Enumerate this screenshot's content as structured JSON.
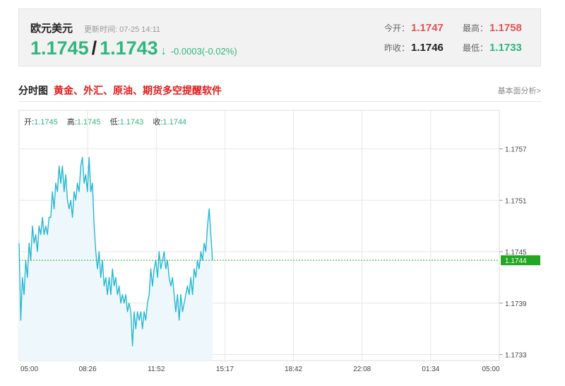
{
  "header": {
    "pair_name": "欧元美元",
    "update_time": "更新时间: 07-25 14:11",
    "price_left": "1.1745",
    "price_sep": "/",
    "price_right": "1.1743",
    "arrow": "↓",
    "change": "-0.0003(-0.02%)",
    "stats": {
      "open_label": "今开：",
      "open": "1.1747",
      "high_label": "最高：",
      "high": "1.1758",
      "prev_close_label": "昨收：",
      "prev_close": "1.1746",
      "low_label": "最低：",
      "low": "1.1733"
    }
  },
  "section": {
    "title": "分时图",
    "promo": "黄金、外汇、原油、期货多空提醒软件",
    "link": "基本面分析>"
  },
  "ohlc": {
    "open_label": "开:",
    "open": "1.1745",
    "high_label": "高:",
    "high": "1.1745",
    "low_label": "低:",
    "low": "1.1743",
    "close_label": "收:",
    "close": "1.1744"
  },
  "colors": {
    "line": "#25b6d2",
    "fill": "#eef8fc",
    "current": "#22a722",
    "grid": "#e6e6e6",
    "up": "#e45454",
    "down": "#2fb57e"
  },
  "chart_data": {
    "type": "area",
    "title": "",
    "x_ticks": [
      "05:00",
      "08:26",
      "11:52",
      "15:17",
      "18:42",
      "22:08",
      "01:34",
      "05:00"
    ],
    "y_ticks": [
      1.1757,
      1.1751,
      1.1745,
      1.1739,
      1.1733
    ],
    "ylim": [
      1.17323,
      1.17615
    ],
    "grid": true,
    "current_value": 1.1744,
    "current_label": "1.1744",
    "x_unit": "minutes from 05:00",
    "series": [
      {
        "x": [
          0,
          5,
          10,
          15,
          20,
          25,
          30,
          35,
          40,
          45,
          50,
          55,
          60,
          65,
          70,
          75,
          80,
          85,
          90,
          95,
          100,
          105,
          110,
          115,
          120,
          125,
          130,
          135,
          140,
          145,
          150,
          155,
          160,
          165,
          170,
          175,
          180,
          185,
          190,
          195,
          200,
          205,
          210,
          215,
          220,
          225,
          230,
          235,
          240,
          245,
          250,
          255,
          260,
          265,
          270,
          275,
          280,
          285,
          290,
          295,
          300,
          305,
          310,
          315,
          320,
          325,
          330,
          335,
          340,
          345,
          350,
          355,
          360,
          365,
          370,
          375,
          380,
          385,
          390,
          395,
          400,
          405,
          410,
          415,
          420,
          425,
          430,
          435,
          440,
          445,
          450,
          455,
          460,
          465,
          470,
          475,
          480,
          485,
          490,
          495,
          500,
          505,
          510,
          515,
          520,
          525,
          530,
          535,
          540,
          545,
          550,
          555,
          560,
          565,
          570,
          575,
          580
        ],
        "y": [
          1.1746,
          1.1737,
          1.1742,
          1.174,
          1.1744,
          1.1742,
          1.1746,
          1.1744,
          1.1748,
          1.1746,
          1.1747,
          1.1745,
          1.1748,
          1.1747,
          1.1749,
          1.1747,
          1.1748,
          1.1747,
          1.1749,
          1.1749,
          1.1752,
          1.175,
          1.1753,
          1.1752,
          1.1755,
          1.1753,
          1.1755,
          1.1752,
          1.1754,
          1.1751,
          1.175,
          1.1751,
          1.1749,
          1.1752,
          1.1751,
          1.1753,
          1.1752,
          1.1755,
          1.1756,
          1.1753,
          1.1754,
          1.1752,
          1.1756,
          1.1752,
          1.1753,
          1.1748,
          1.1745,
          1.1743,
          1.1745,
          1.1742,
          1.1744,
          1.1741,
          1.1742,
          1.174,
          1.1742,
          1.174,
          1.1743,
          1.1741,
          1.1742,
          1.174,
          1.1741,
          1.1739,
          1.174,
          1.1739,
          1.174,
          1.1738,
          1.1739,
          1.1738,
          1.1734,
          1.1738,
          1.1736,
          1.1738,
          1.1737,
          1.1738,
          1.1736,
          1.1738,
          1.1737,
          1.1739,
          1.174,
          1.1743,
          1.1741,
          1.1743,
          1.1744,
          1.1742,
          1.1745,
          1.1743,
          1.1744,
          1.1745,
          1.1743,
          1.1744,
          1.1742,
          1.1741,
          1.1742,
          1.174,
          1.1738,
          1.174,
          1.1737,
          1.174,
          1.1738,
          1.1739,
          1.174,
          1.1741,
          1.174,
          1.1742,
          1.174,
          1.1743,
          1.1742,
          1.1744,
          1.1743,
          1.1745,
          1.1744,
          1.1746,
          1.1745,
          1.1748,
          1.175,
          1.1747,
          1.1744
        ]
      }
    ]
  }
}
